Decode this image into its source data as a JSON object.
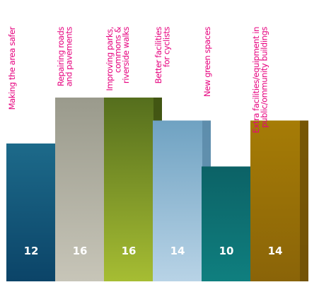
{
  "chart_data": {
    "type": "bar",
    "title": "",
    "xlabel": "",
    "ylabel": "",
    "ylim": [
      0,
      20
    ],
    "grid": false,
    "legend": "none",
    "categories": [
      [
        "Making the area safer"
      ],
      [
        "Repairing roads",
        "and pavements"
      ],
      [
        "Improving parks,",
        "commons &",
        "riverside walks"
      ],
      [
        "Better facilities",
        "for cyclists"
      ],
      [
        "New green spaces"
      ],
      [
        "Extra facilities/equipment in",
        "public/ommunity buildings"
      ]
    ],
    "values": [
      12,
      16,
      16,
      14,
      10,
      14
    ],
    "value_labels": [
      "12",
      "16",
      "16",
      "14",
      "10",
      "14"
    ],
    "colors": [
      {
        "top": "#1d6a8a",
        "bottom": "#0b4468",
        "side": "#08324d"
      },
      {
        "top": "#9a9a8c",
        "bottom": "#c7c5b8",
        "side": "#757569"
      },
      {
        "top": "#556e1d",
        "bottom": "#a6bd33",
        "side": "#3e5112"
      },
      {
        "top": "#6fa2c2",
        "bottom": "#b8d3e6",
        "side": "#5a8aa8"
      },
      {
        "top": "#0c6266",
        "bottom": "#0f7f7f",
        "side": "#0a4d50"
      },
      {
        "top": "#a67c06",
        "bottom": "#8a6408",
        "side": "#6e5006"
      }
    ],
    "label_color": "#e6007e",
    "value_label_color": "#ffffff"
  }
}
